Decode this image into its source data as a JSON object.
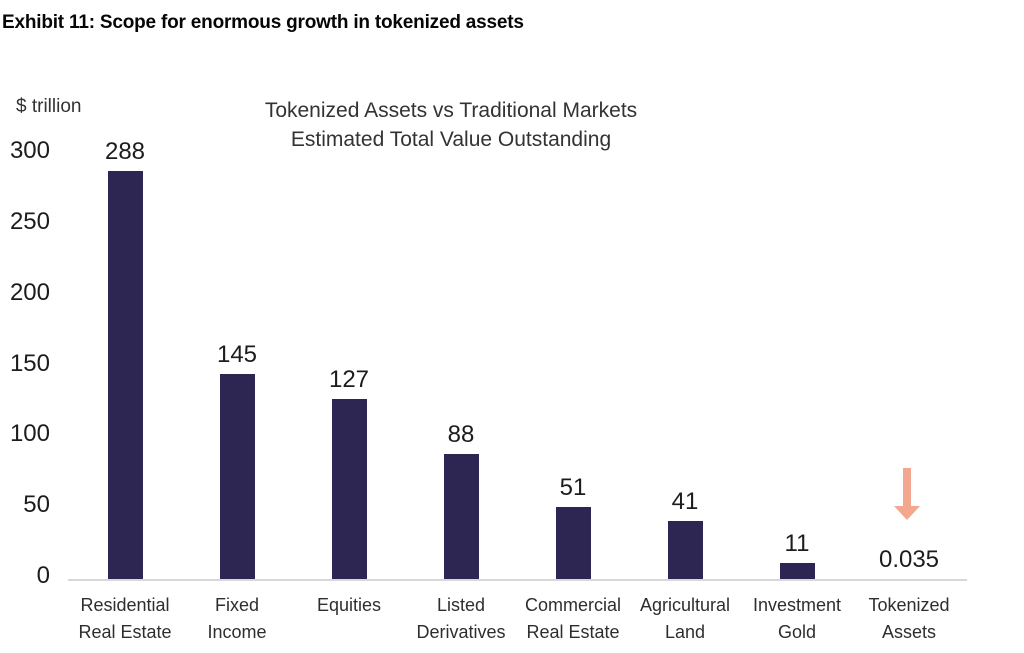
{
  "page": {
    "exhibit_title": "Exhibit 11: Scope for enormous growth in tokenized assets"
  },
  "chart_data": {
    "type": "bar",
    "title": "Tokenized Assets vs Traditional Markets",
    "subtitle": "Estimated Total Value Outstanding",
    "unit_label": "$ trillion",
    "categories": [
      "Residential Real Estate",
      "Fixed Income",
      "Equities",
      "Listed Derivatives",
      "Commercial Real Estate",
      "Agricultural Land",
      "Investment Gold",
      "Tokenized Assets"
    ],
    "category_lines": [
      [
        "Residential",
        "Real Estate"
      ],
      [
        "Fixed",
        "Income"
      ],
      [
        "Equities"
      ],
      [
        "Listed",
        "Derivatives"
      ],
      [
        "Commercial",
        "Real Estate"
      ],
      [
        "Agricultural",
        "Land"
      ],
      [
        "Investment",
        "Gold"
      ],
      [
        "Tokenized",
        "Assets"
      ]
    ],
    "values": [
      288,
      145,
      127,
      88,
      51,
      41,
      11,
      0.035
    ],
    "value_labels": [
      "288",
      "145",
      "127",
      "88",
      "51",
      "41",
      "11",
      "0.035"
    ],
    "ylabel": "$ trillion",
    "yticks": [
      0,
      50,
      100,
      150,
      200,
      250,
      300
    ],
    "ylim": [
      0,
      300
    ],
    "grid": false,
    "legend": false,
    "annotation": {
      "shape": "down-arrow",
      "category": "Tokenized Assets"
    }
  },
  "colors": {
    "bar": "#2d2652",
    "arrow": "#f3a78f",
    "axis_line": "#d8d8d8",
    "number_text": "#1c1c1c",
    "label_text": "#2e2e2e",
    "title_text": "#333333",
    "exhibit_title_text": "#060606",
    "background": "#ffffff"
  }
}
